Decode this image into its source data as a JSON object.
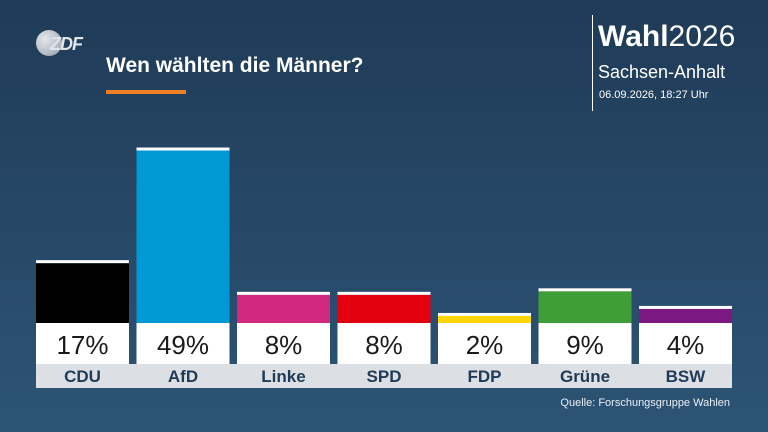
{
  "header": {
    "logo_text": "ZDF",
    "title": "Wen wählten die Männer?",
    "brand_bold": "Wahl",
    "brand_year": "2026",
    "region": "Sachsen-Anhalt",
    "datetime": "06.09.2026, 18:27 Uhr",
    "accent_color": "#ef7d22"
  },
  "chart_data": {
    "type": "bar",
    "title": "Wen wählten die Männer?",
    "categories": [
      "CDU",
      "AfD",
      "Linke",
      "SPD",
      "FDP",
      "Grüne",
      "BSW"
    ],
    "values": [
      17,
      49,
      8,
      8,
      2,
      9,
      4
    ],
    "value_labels": [
      "17%",
      "49%",
      "8%",
      "8%",
      "2%",
      "9%",
      "4%"
    ],
    "colors": [
      "#000000",
      "#0099d6",
      "#d2287f",
      "#e3000f",
      "#ffd600",
      "#3f9e36",
      "#7b1882"
    ],
    "unit": "%",
    "ylim": [
      0,
      50
    ],
    "grid": false
  },
  "footer": {
    "source": "Quelle: Forschungsgruppe Wahlen"
  }
}
